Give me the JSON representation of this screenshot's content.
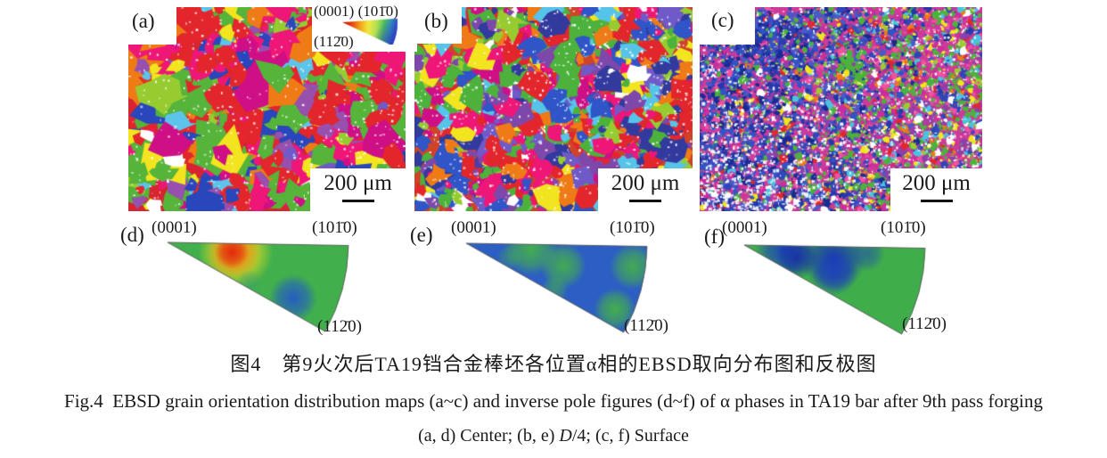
{
  "panels": {
    "a": {
      "label": "(a)",
      "scale": "200 μm"
    },
    "b": {
      "label": "(b)",
      "scale": "200 μm"
    },
    "c": {
      "label": "(c)",
      "scale": "200 μm"
    },
    "d": {
      "label": "(d)"
    },
    "e": {
      "label": "(e)"
    },
    "f": {
      "label": "(f)"
    }
  },
  "legend": {
    "top": "(0001) (101̄0)",
    "bottom": "(112̄0)"
  },
  "ipf_corners": {
    "c0001": "(0001)",
    "c1010": "(101̄0)",
    "c1120": "(112̄0)"
  },
  "captions": {
    "zh": "图4　第9火次后TA19铛合金棒坯各位置α相的EBSD取向分布图和反极图",
    "en": "Fig.4  EBSD grain orientation distribution maps (a~c) and inverse pole figures (d~f) of α phases in TA19 bar after 9th pass forging",
    "sub_pre": "(a, d) Center; (b, e) ",
    "sub_d": "D",
    "sub_post": "/4; (c, f) Surface"
  },
  "ipf_colors": {
    "red": "#e03010",
    "green": "#3fae4a",
    "blue": "#2d5ec2",
    "yellow": "#f4e828"
  }
}
